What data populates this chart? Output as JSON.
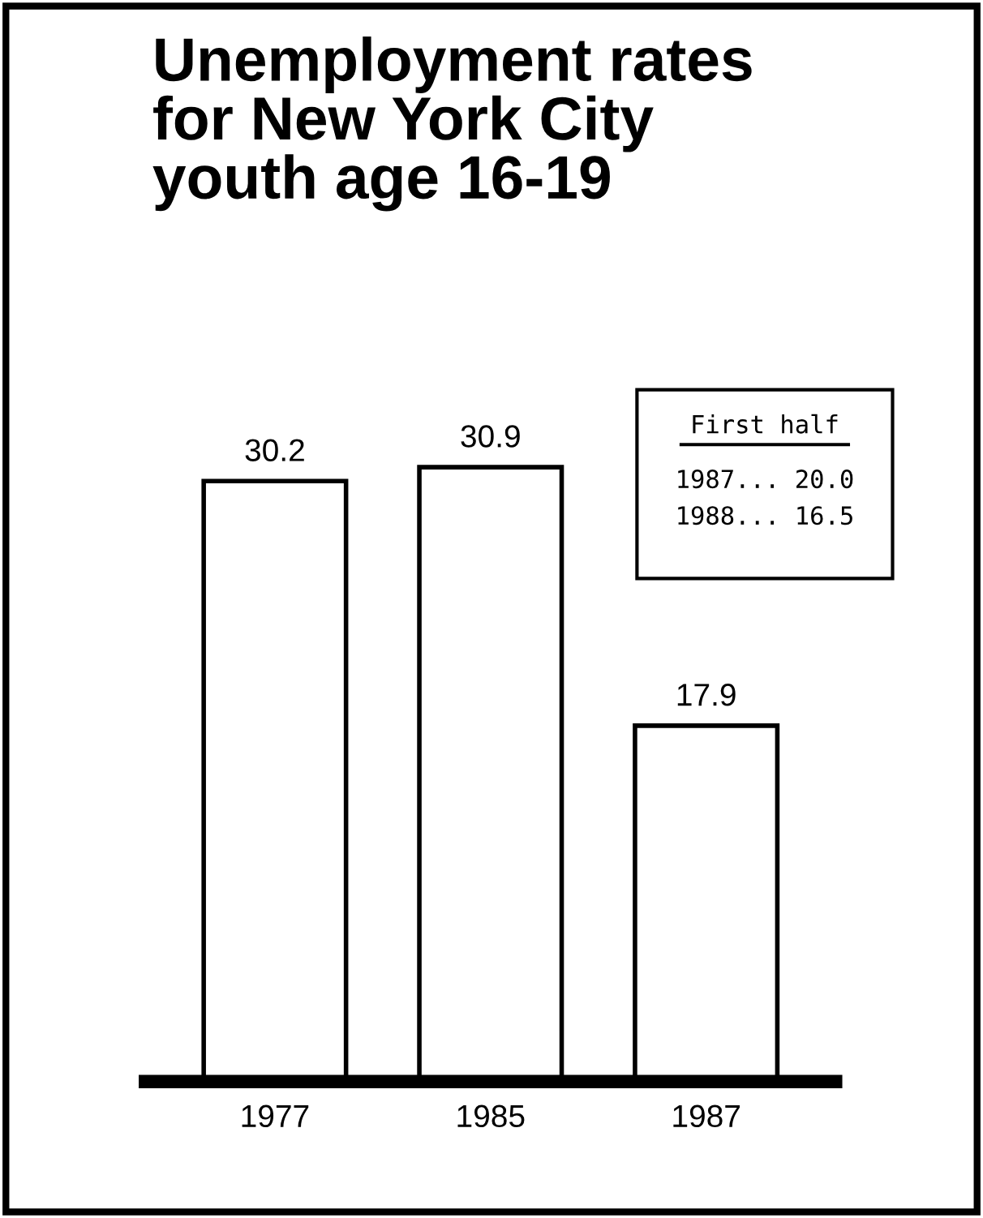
{
  "chart_data": {
    "type": "bar",
    "title": "Unemployment rates\nfor New York City\nyouth age 16-19",
    "categories": [
      "1977",
      "1985",
      "1987"
    ],
    "values": [
      30.2,
      30.9,
      17.9
    ],
    "color": "#ffffff",
    "data_labels": true,
    "grid": false,
    "legend": false,
    "tick_labels": "x",
    "annotations": [
      "First half",
      "1987... 20.0",
      "1988... 16.5"
    ]
  }
}
